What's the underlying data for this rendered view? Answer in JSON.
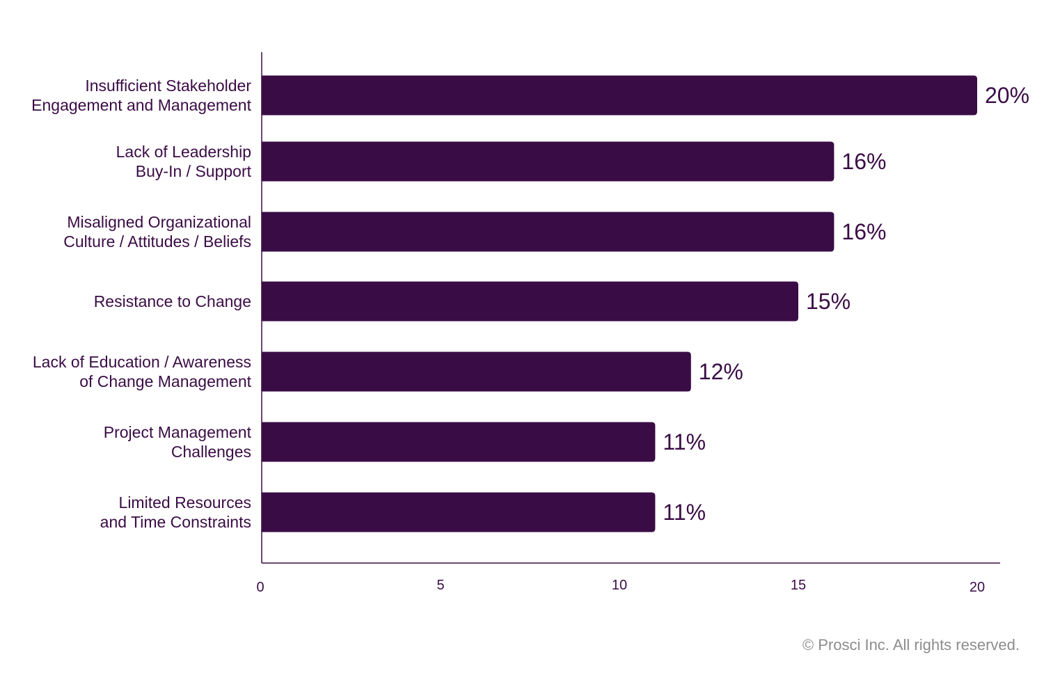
{
  "chart_data": {
    "type": "bar",
    "orientation": "horizontal",
    "categories": [
      [
        "Insufficient Stakeholder",
        "Engagement and Management"
      ],
      [
        "Lack of Leadership",
        "Buy-In / Support"
      ],
      [
        "Misaligned Organizational",
        "Culture / Attitudes / Beliefs"
      ],
      [
        "Resistance to Change"
      ],
      [
        "Lack of Education / Awareness",
        "of Change Management"
      ],
      [
        "Project Management",
        "Challenges"
      ],
      [
        "Limited Resources",
        "and Time Constraints"
      ]
    ],
    "values": [
      20,
      16,
      16,
      15,
      12,
      11,
      11
    ],
    "value_labels": [
      "20%",
      "16%",
      "16%",
      "15%",
      "12%",
      "11%",
      "11%"
    ],
    "xticks": [
      0,
      5,
      10,
      15,
      20
    ],
    "xlim": [
      0,
      21
    ],
    "grid": false,
    "bar_color": "#3a0c45",
    "text_color": "#3a0c45",
    "axis_color": "#3a0c45"
  },
  "footer": {
    "copyright": "© Prosci Inc. All rights reserved."
  }
}
